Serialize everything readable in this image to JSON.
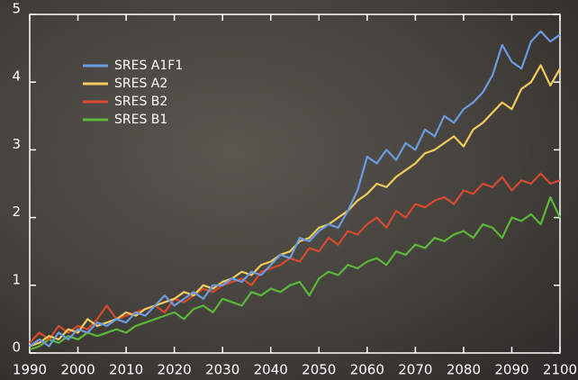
{
  "chart_data": {
    "type": "line",
    "x": [
      1990,
      1992,
      1994,
      1996,
      1998,
      2000,
      2002,
      2004,
      2006,
      2008,
      2010,
      2012,
      2014,
      2016,
      2018,
      2020,
      2022,
      2024,
      2026,
      2028,
      2030,
      2032,
      2034,
      2036,
      2038,
      2040,
      2042,
      2044,
      2046,
      2048,
      2050,
      2052,
      2054,
      2056,
      2058,
      2060,
      2062,
      2064,
      2066,
      2068,
      2070,
      2072,
      2074,
      2076,
      2078,
      2080,
      2082,
      2084,
      2086,
      2088,
      2090,
      2092,
      2094,
      2096,
      2098,
      2100
    ],
    "series": [
      {
        "name": "SRES A1F1",
        "color": "#6b9be0",
        "values": [
          0.1,
          0.2,
          0.1,
          0.3,
          0.2,
          0.35,
          0.3,
          0.45,
          0.4,
          0.5,
          0.45,
          0.6,
          0.55,
          0.7,
          0.85,
          0.7,
          0.8,
          0.9,
          0.8,
          1.0,
          1.0,
          1.1,
          1.05,
          1.2,
          1.15,
          1.3,
          1.45,
          1.4,
          1.7,
          1.65,
          1.8,
          1.9,
          1.85,
          2.1,
          2.4,
          2.9,
          2.8,
          3.0,
          2.85,
          3.1,
          3.0,
          3.3,
          3.2,
          3.5,
          3.4,
          3.6,
          3.7,
          3.85,
          4.1,
          4.55,
          4.3,
          4.2,
          4.6,
          4.75,
          4.6,
          4.7
        ]
      },
      {
        "name": "SRES A2",
        "color": "#f2cc5c",
        "values": [
          0.1,
          0.15,
          0.25,
          0.2,
          0.35,
          0.3,
          0.5,
          0.4,
          0.45,
          0.5,
          0.6,
          0.55,
          0.65,
          0.7,
          0.75,
          0.8,
          0.9,
          0.85,
          1.0,
          0.95,
          1.05,
          1.1,
          1.2,
          1.15,
          1.3,
          1.35,
          1.45,
          1.5,
          1.65,
          1.7,
          1.85,
          1.9,
          2.0,
          2.1,
          2.25,
          2.35,
          2.5,
          2.45,
          2.6,
          2.7,
          2.8,
          2.95,
          3.0,
          3.1,
          3.2,
          3.05,
          3.3,
          3.4,
          3.55,
          3.7,
          3.6,
          3.9,
          4.0,
          4.25,
          3.95,
          4.2
        ]
      },
      {
        "name": "SRES B2",
        "color": "#d64a30",
        "values": [
          0.15,
          0.3,
          0.2,
          0.4,
          0.3,
          0.4,
          0.35,
          0.5,
          0.7,
          0.5,
          0.55,
          0.6,
          0.65,
          0.7,
          0.6,
          0.8,
          0.75,
          0.85,
          0.95,
          0.9,
          1.0,
          1.05,
          1.1,
          1.0,
          1.2,
          1.25,
          1.3,
          1.4,
          1.35,
          1.55,
          1.5,
          1.7,
          1.6,
          1.8,
          1.75,
          1.9,
          2.0,
          1.85,
          2.1,
          2.0,
          2.2,
          2.15,
          2.25,
          2.3,
          2.2,
          2.4,
          2.35,
          2.5,
          2.45,
          2.6,
          2.4,
          2.55,
          2.5,
          2.65,
          2.5,
          2.55
        ]
      },
      {
        "name": "SRES B1",
        "color": "#5bb83a",
        "values": [
          0.05,
          0.1,
          0.2,
          0.15,
          0.25,
          0.2,
          0.3,
          0.25,
          0.3,
          0.35,
          0.3,
          0.4,
          0.45,
          0.5,
          0.55,
          0.6,
          0.5,
          0.65,
          0.7,
          0.6,
          0.8,
          0.75,
          0.7,
          0.9,
          0.85,
          0.95,
          0.9,
          1.0,
          1.05,
          0.85,
          1.1,
          1.2,
          1.15,
          1.3,
          1.25,
          1.35,
          1.4,
          1.3,
          1.5,
          1.45,
          1.6,
          1.55,
          1.7,
          1.65,
          1.75,
          1.8,
          1.7,
          1.9,
          1.85,
          1.7,
          2.0,
          1.95,
          2.05,
          1.9,
          2.3,
          2.0
        ]
      }
    ],
    "xlim": [
      1990,
      2100
    ],
    "ylim": [
      0,
      5
    ],
    "xticks": [
      1990,
      2000,
      2010,
      2020,
      2030,
      2040,
      2050,
      2060,
      2070,
      2080,
      2090,
      2100
    ],
    "yticks": [
      0,
      1,
      2,
      3,
      4,
      5
    ],
    "legend": "upper left"
  }
}
